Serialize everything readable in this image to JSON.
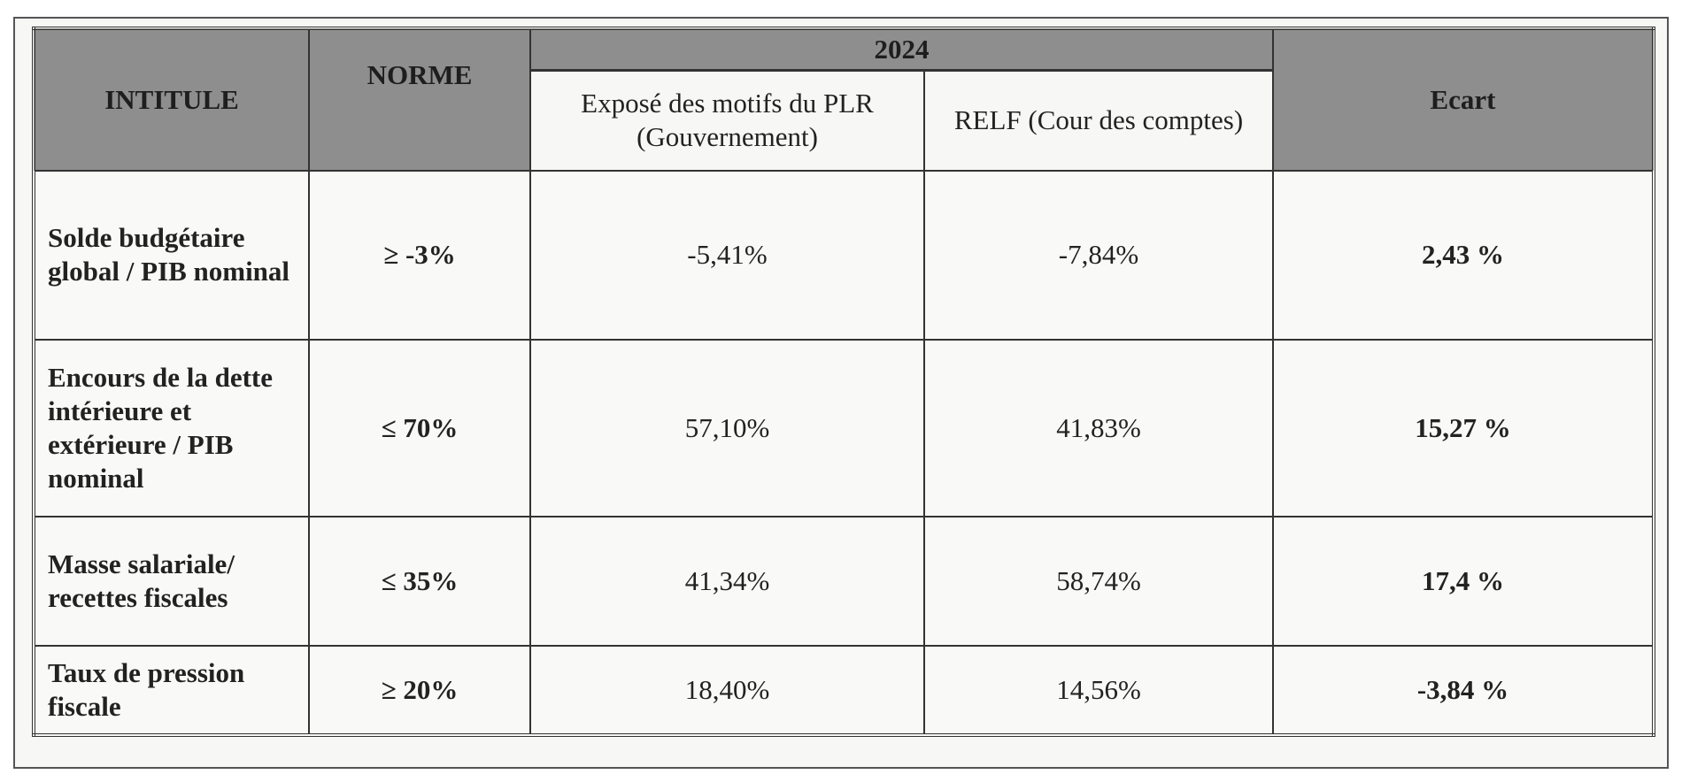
{
  "header": {
    "intitule": "INTITULE",
    "norme": "NORME",
    "year": "2024",
    "expose": "Exposé des motifs du PLR (Gouvernement)",
    "relf": "RELF (Cour des comptes)",
    "ecart": "Ecart"
  },
  "colors": {
    "header_bg": "#8e8e8e",
    "border": "#333333"
  },
  "rows": [
    {
      "intitule": "Solde budgétaire global / PIB nominal",
      "norme": "≥ -3%",
      "expose": "-5,41%",
      "relf": "-7,84%",
      "ecart": "2,43 %"
    },
    {
      "intitule": "Encours de la dette intérieure et extérieure / PIB nominal",
      "norme": "≤ 70%",
      "expose": "57,10%",
      "relf": "41,83%",
      "ecart": "15,27 %"
    },
    {
      "intitule": "Masse salariale/ recettes fiscales",
      "norme": "≤ 35%",
      "expose": "41,34%",
      "relf": "58,74%",
      "ecart": "17,4 %"
    },
    {
      "intitule": "Taux de pression fiscale",
      "norme": "≥ 20%",
      "expose": "18,40%",
      "relf": "14,56%",
      "ecart": "-3,84 %"
    }
  ]
}
